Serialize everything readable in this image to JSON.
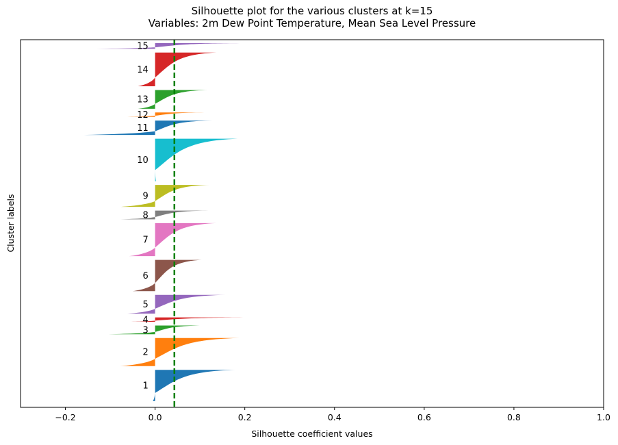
{
  "chart_data": {
    "type": "silhouette",
    "title": "Silhouette plot for the various clusters at k=15",
    "subtitle": "Variables: 2m Dew Point Temperature, Mean Sea Level Pressure",
    "xlabel": "Silhouette coefficient values",
    "ylabel": "Cluster labels",
    "xlim": [
      -0.3,
      1.0
    ],
    "xticks": [
      "−0.2",
      "0.0",
      "0.2",
      "0.4",
      "0.6",
      "0.8",
      "1.0"
    ],
    "xtick_values": [
      -0.2,
      0.0,
      0.2,
      0.4,
      0.6,
      0.8,
      1.0
    ],
    "yticks": "none",
    "grid": false,
    "average_silhouette": 0.043,
    "average_line_color": "#008000",
    "clusters": [
      {
        "label": "1",
        "size": 5.0,
        "max": 0.178,
        "min": -0.005,
        "color": "#1f77b4"
      },
      {
        "label": "2",
        "size": 4.5,
        "max": 0.188,
        "min": -0.078,
        "color": "#ff7f0e"
      },
      {
        "label": "3",
        "size": 1.4,
        "max": 0.105,
        "min": -0.104,
        "color": "#2ca02c"
      },
      {
        "label": "4",
        "size": 0.7,
        "max": 0.214,
        "min": -0.058,
        "color": "#d62728"
      },
      {
        "label": "5",
        "size": 3.0,
        "max": 0.157,
        "min": -0.062,
        "color": "#9467bd"
      },
      {
        "label": "6",
        "size": 5.0,
        "max": 0.104,
        "min": -0.05,
        "color": "#8c564b"
      },
      {
        "label": "7",
        "size": 5.3,
        "max": 0.137,
        "min": -0.058,
        "color": "#e377c2"
      },
      {
        "label": "8",
        "size": 1.4,
        "max": 0.119,
        "min": -0.077,
        "color": "#7f7f7f"
      },
      {
        "label": "9",
        "size": 3.5,
        "max": 0.121,
        "min": -0.077,
        "color": "#bcbd22"
      },
      {
        "label": "10",
        "size": 6.8,
        "max": 0.184,
        "min": 0.002,
        "color": "#17becf"
      },
      {
        "label": "11",
        "size": 2.3,
        "max": 0.127,
        "min": -0.167,
        "color": "#1f77b4"
      },
      {
        "label": "12",
        "size": 0.7,
        "max": 0.116,
        "min": -0.062,
        "color": "#ff7f0e"
      },
      {
        "label": "13",
        "size": 3.0,
        "max": 0.117,
        "min": -0.038,
        "color": "#2ca02c"
      },
      {
        "label": "14",
        "size": 5.4,
        "max": 0.137,
        "min": -0.038,
        "color": "#d62728"
      },
      {
        "label": "15",
        "size": 0.9,
        "max": 0.197,
        "min": -0.143,
        "color": "#9467bd"
      }
    ]
  }
}
